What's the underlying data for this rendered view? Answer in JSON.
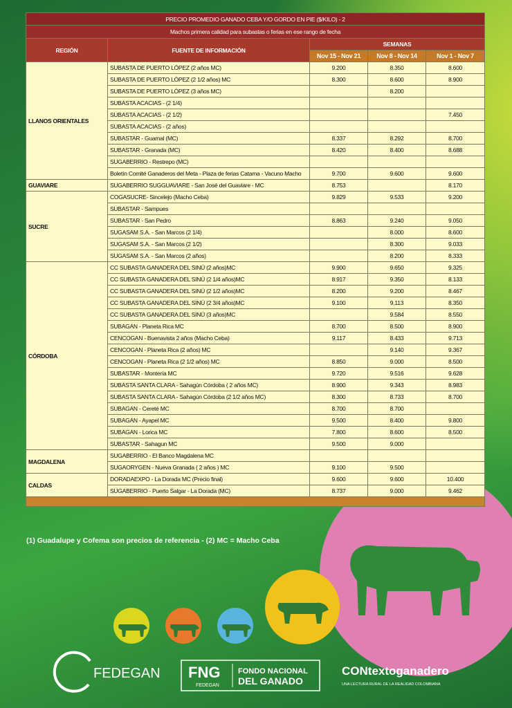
{
  "table": {
    "title": "PRECIO PROMEDIO GANADO CEBA Y/O GORDO EN PIE ($/KILO) - 2",
    "subtitle": "Machos primera calidad para subastas o ferias en ese rango de fecha",
    "headers": {
      "region": "REGIÓN",
      "source": "FUENTE DE INFORMACIÓN",
      "weeks": "SEMANAS",
      "week_labels": [
        "Nov 15 - Nov 21",
        "Nov 8 - Nov 14",
        "Nov 1 - Nov 7"
      ]
    },
    "groups": [
      {
        "region": "LLANOS ORIENTALES",
        "rows": [
          [
            "SUBASTA DE PUERTO LÓPEZ (2 años MC)",
            "9.200",
            "8.350",
            "8.600"
          ],
          [
            "SUBASTA DE PUERTO LÓPEZ (2 1/2 años) MC",
            "8.300",
            "8.600",
            "8.900"
          ],
          [
            "SUBASTA DE PUERTO LÓPEZ (3 años MC)",
            null,
            "8.200",
            null
          ],
          [
            "SUBASTA ACACIAS -  (2 1/4)",
            null,
            null,
            null
          ],
          [
            "SUBASTA ACACIAS - (2 1/2)",
            null,
            null,
            "7.450"
          ],
          [
            "SUBASTA ACACIAS - (2 años)",
            null,
            null,
            null
          ],
          [
            "SUBASTAR - Guamal (MC)",
            "8.337",
            "8.292",
            "8.700"
          ],
          [
            "SUBASTAR - Granada (MC)",
            "8.420",
            "8.400",
            "8.688"
          ],
          [
            "SUGABERRIO - Restrepo (MC)",
            null,
            null,
            null
          ],
          [
            "Boletín Comité Ganaderos del Meta - Plaza de ferias Catama - Vacuno Macho",
            "9.700",
            "9.600",
            "9.600"
          ]
        ]
      },
      {
        "region": "GUAVIARE",
        "rows": [
          [
            "SUGABERRIO SUGGUAVIARE - San José del Guaviare - MC",
            "8.753",
            null,
            "8.170"
          ]
        ]
      },
      {
        "region": "SUCRE",
        "rows": [
          [
            "COGASUCRE- Sincelejo (Macho Ceba)",
            "9.829",
            "9.533",
            "9.200"
          ],
          [
            "SUBASTAR - Sampues",
            null,
            null,
            null
          ],
          [
            "SUBASTAR - San Pedro",
            "8.863",
            "9.240",
            "9.050"
          ],
          [
            "SUGASAM S.A. - San Marcos (2 1/4)",
            null,
            "8.000",
            "8.600"
          ],
          [
            "SUGASAM S.A. - San Marcos (2 1/2)",
            null,
            "8.300",
            "9.033"
          ],
          [
            "SUGASAM S.A. - San Marcos (2 años)",
            null,
            "8.200",
            "8.333"
          ]
        ]
      },
      {
        "region": "CÓRDOBA",
        "rows": [
          [
            "CC SUBASTA GANADERA DEL SINÚ (2 años)MC",
            "9.900",
            "9.650",
            "9.325"
          ],
          [
            "CC SUBASTA GANADERA DEL SINÚ (2 1/4 años)MC",
            "8.917",
            "9.350",
            "8.133"
          ],
          [
            "CC SUBASTA GANADERA DEL SINÚ (2 1/2 años)MC",
            "8.200",
            "9.200",
            "8.467"
          ],
          [
            "CC SUBASTA GANADERA DEL SINÚ (2 3/4 años)MC",
            "9.100",
            "9.113",
            "8.350"
          ],
          [
            "CC SUBASTA GANADERA DEL SINÚ (3 años)MC",
            null,
            "9.584",
            "8.550"
          ],
          [
            "SUBAGAN - Planeta Rica MC",
            "8.700",
            "8.500",
            "8.900"
          ],
          [
            "CENCOGAN - Buenavista 2 años (Macho Ceba)",
            "9.117",
            "8.433",
            "9.713"
          ],
          [
            "CENCOGAN - Planeta Rica (2 años) MC",
            null,
            "9.140",
            "9.367"
          ],
          [
            "CENCOGAN - Planeta Rica (2 1/2 años) MC",
            "8.850",
            "9.000",
            "8.500"
          ],
          [
            "SUBASTAR - Montería MC",
            "9.720",
            "9.516",
            "9.628"
          ],
          [
            "SUBASTA SANTA CLARA - Sahagún Córdoba ( 2 años MC)",
            "8.900",
            "9.343",
            "8.983"
          ],
          [
            "SUBASTA SANTA CLARA - Sahagún Córdoba (2 1/2 años MC)",
            "8.300",
            "8.733",
            "8.700"
          ],
          [
            "SUBAGAN - Cereté MC",
            "8.700",
            "8.700",
            null
          ],
          [
            "SUBAGAN - Ayapel MC",
            "9.500",
            "8.400",
            "9.800"
          ],
          [
            "SUBAGAN - Lorica MC",
            "7.800",
            "8.600",
            "8.500"
          ],
          [
            "SUBASTAR - Sahagun MC",
            "9.500",
            "9.000",
            null
          ]
        ]
      },
      {
        "region": "MAGDALENA",
        "rows": [
          [
            "SUGABERRIO - El Banco Magdalena MC",
            null,
            null,
            null
          ],
          [
            "SUGAORYGEN - Nueva Granada ( 2 años ) MC",
            "9.100",
            "9.500",
            null
          ]
        ]
      },
      {
        "region": "CALDAS",
        "rows": [
          [
            "DORADAEXPO - La Dorada MC (Precio final)",
            "9.600",
            "9.600",
            "10.400"
          ],
          [
            "SUGABERRIO - Puerto Salgar - La Dorada (MC)",
            "8.737",
            "9.000",
            "9.462"
          ]
        ]
      }
    ],
    "footnote": "(1) Guadalupe y Cofema son precios de referencia  -  (2) MC = Macho Ceba"
  },
  "footer": {
    "fedegan": "FEDEGAN",
    "fng": "FNG",
    "fng_sub": "FEDEGAN",
    "fondo_1": "FONDO NACIONAL",
    "fondo_2": "DEL GANADO",
    "contexto": "CONtextoganadero",
    "contexto_tagline": "UNA LECTURA RURAL DE LA REALIDAD COLOMBIANA"
  }
}
